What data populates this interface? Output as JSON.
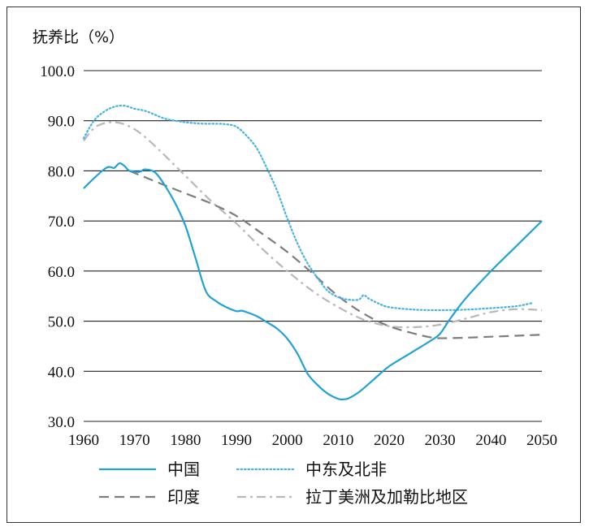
{
  "chart_data": {
    "type": "line",
    "title": "",
    "ylabel": "抚养比（%）",
    "xlabel": "",
    "xlim": [
      1960,
      2050
    ],
    "ylim": [
      30,
      100
    ],
    "x_ticks": [
      "1960",
      "1970",
      "1980",
      "1990",
      "2000",
      "2010",
      "2020",
      "2030",
      "2040",
      "2050"
    ],
    "y_ticks": [
      "30.0",
      "40.0",
      "50.0",
      "60.0",
      "70.0",
      "80.0",
      "90.0",
      "100.0"
    ],
    "grid": "horizontal",
    "legend_position": "bottom",
    "series": [
      {
        "name": "中国",
        "style": "solid",
        "color": "#1fa3d4",
        "points": [
          [
            1960,
            76.5
          ],
          [
            1962,
            78.5
          ],
          [
            1964,
            80.3
          ],
          [
            1965,
            80.8
          ],
          [
            1966,
            80.6
          ],
          [
            1967,
            81.5
          ],
          [
            1968,
            81.0
          ],
          [
            1969,
            80.0
          ],
          [
            1971,
            79.8
          ],
          [
            1972,
            80.3
          ],
          [
            1974,
            79.7
          ],
          [
            1976,
            77.0
          ],
          [
            1978,
            73.5
          ],
          [
            1980,
            69.0
          ],
          [
            1982,
            62.5
          ],
          [
            1984,
            56.0
          ],
          [
            1986,
            54.0
          ],
          [
            1988,
            52.8
          ],
          [
            1990,
            52.0
          ],
          [
            1991,
            52.1
          ],
          [
            1992,
            51.8
          ],
          [
            1994,
            51.0
          ],
          [
            1996,
            49.8
          ],
          [
            1998,
            48.5
          ],
          [
            2000,
            46.5
          ],
          [
            2002,
            43.5
          ],
          [
            2004,
            39.5
          ],
          [
            2006,
            37.2
          ],
          [
            2008,
            35.5
          ],
          [
            2010,
            34.5
          ],
          [
            2011,
            34.4
          ],
          [
            2012,
            34.6
          ],
          [
            2014,
            35.8
          ],
          [
            2016,
            37.5
          ],
          [
            2018,
            39.3
          ],
          [
            2020,
            41.0
          ],
          [
            2024,
            43.5
          ],
          [
            2028,
            46.0
          ],
          [
            2030,
            47.5
          ],
          [
            2032,
            50.5
          ],
          [
            2035,
            54.5
          ],
          [
            2040,
            60.0
          ],
          [
            2045,
            65.0
          ],
          [
            2050,
            70.0
          ]
        ]
      },
      {
        "name": "中东及北非",
        "style": "dotted",
        "color": "#47b4e0",
        "points": [
          [
            1960,
            86.5
          ],
          [
            1962,
            90.0
          ],
          [
            1964,
            91.8
          ],
          [
            1966,
            92.8
          ],
          [
            1968,
            93.0
          ],
          [
            1970,
            92.4
          ],
          [
            1972,
            92.0
          ],
          [
            1974,
            91.2
          ],
          [
            1976,
            90.4
          ],
          [
            1978,
            90.0
          ],
          [
            1980,
            89.7
          ],
          [
            1982,
            89.5
          ],
          [
            1984,
            89.4
          ],
          [
            1986,
            89.4
          ],
          [
            1988,
            89.3
          ],
          [
            1990,
            88.8
          ],
          [
            1992,
            87.0
          ],
          [
            1994,
            84.5
          ],
          [
            1996,
            80.5
          ],
          [
            1998,
            76.0
          ],
          [
            2000,
            70.5
          ],
          [
            2002,
            65.5
          ],
          [
            2004,
            61.5
          ],
          [
            2006,
            58.5
          ],
          [
            2008,
            56.0
          ],
          [
            2010,
            54.8
          ],
          [
            2012,
            54.3
          ],
          [
            2014,
            54.3
          ],
          [
            2015,
            55.2
          ],
          [
            2016,
            54.5
          ],
          [
            2018,
            53.5
          ],
          [
            2020,
            52.8
          ],
          [
            2025,
            52.3
          ],
          [
            2030,
            52.2
          ],
          [
            2035,
            52.3
          ],
          [
            2040,
            52.6
          ],
          [
            2045,
            53.0
          ],
          [
            2048,
            53.6
          ]
        ]
      },
      {
        "name": "印度",
        "style": "dashed",
        "color": "#7d7d7d",
        "points": [
          [
            1969,
            80.0
          ],
          [
            1975,
            77.5
          ],
          [
            1980,
            75.5
          ],
          [
            1985,
            73.5
          ],
          [
            1990,
            71.0
          ],
          [
            1995,
            67.5
          ],
          [
            2000,
            63.8
          ],
          [
            2005,
            59.5
          ],
          [
            2010,
            55.0
          ],
          [
            2015,
            51.5
          ],
          [
            2020,
            49.0
          ],
          [
            2025,
            47.5
          ],
          [
            2028,
            46.8
          ],
          [
            2030,
            46.6
          ],
          [
            2035,
            46.7
          ],
          [
            2040,
            46.9
          ],
          [
            2045,
            47.1
          ],
          [
            2050,
            47.3
          ]
        ]
      },
      {
        "name": "拉丁美洲及加勒比地区",
        "style": "dashdot",
        "color": "#b8b8b8",
        "points": [
          [
            1960,
            86.0
          ],
          [
            1962,
            88.5
          ],
          [
            1964,
            89.5
          ],
          [
            1966,
            89.7
          ],
          [
            1968,
            89.3
          ],
          [
            1970,
            88.3
          ],
          [
            1972,
            86.8
          ],
          [
            1975,
            84.0
          ],
          [
            1978,
            81.0
          ],
          [
            1980,
            79.0
          ],
          [
            1985,
            74.0
          ],
          [
            1990,
            69.5
          ],
          [
            1995,
            64.5
          ],
          [
            2000,
            60.0
          ],
          [
            2005,
            56.0
          ],
          [
            2010,
            52.8
          ],
          [
            2015,
            50.3
          ],
          [
            2020,
            49.0
          ],
          [
            2025,
            48.8
          ],
          [
            2030,
            49.3
          ],
          [
            2035,
            50.5
          ],
          [
            2040,
            51.8
          ],
          [
            2045,
            52.4
          ],
          [
            2050,
            52.2
          ]
        ]
      }
    ]
  }
}
